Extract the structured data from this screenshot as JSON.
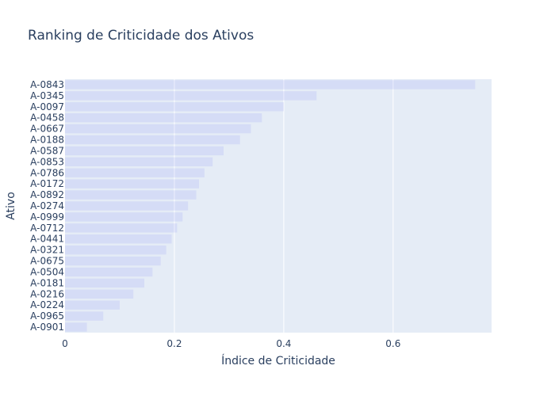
{
  "chart_data": {
    "type": "bar",
    "orientation": "horizontal",
    "title": "Ranking de Criticidade dos Ativos",
    "xlabel": "Índice de Criticidade",
    "ylabel": "Ativo",
    "xlim": [
      0,
      0.78
    ],
    "grid": true,
    "legend": "none",
    "colors": {
      "plot_bg": "#e5ecf6",
      "bar": "#636efa",
      "grid": "#ffffff",
      "text": "#2a3f5f"
    },
    "x_ticks": [
      {
        "value": 0,
        "label": "0"
      },
      {
        "value": 0.2,
        "label": "0.2"
      },
      {
        "value": 0.4,
        "label": "0.4"
      },
      {
        "value": 0.6,
        "label": "0.6"
      }
    ],
    "categories": [
      "A-0843",
      "A-0345",
      "A-0097",
      "A-0458",
      "A-0667",
      "A-0188",
      "A-0587",
      "A-0853",
      "A-0786",
      "A-0172",
      "A-0892",
      "A-0274",
      "A-0999",
      "A-0712",
      "A-0441",
      "A-0321",
      "A-0675",
      "A-0504",
      "A-0181",
      "A-0216",
      "A-0224",
      "A-0965",
      "A-0901"
    ],
    "values": [
      0.75,
      0.46,
      0.4,
      0.36,
      0.34,
      0.32,
      0.29,
      0.27,
      0.255,
      0.245,
      0.24,
      0.225,
      0.215,
      0.205,
      0.195,
      0.185,
      0.175,
      0.16,
      0.145,
      0.125,
      0.1,
      0.07,
      0.04
    ]
  }
}
